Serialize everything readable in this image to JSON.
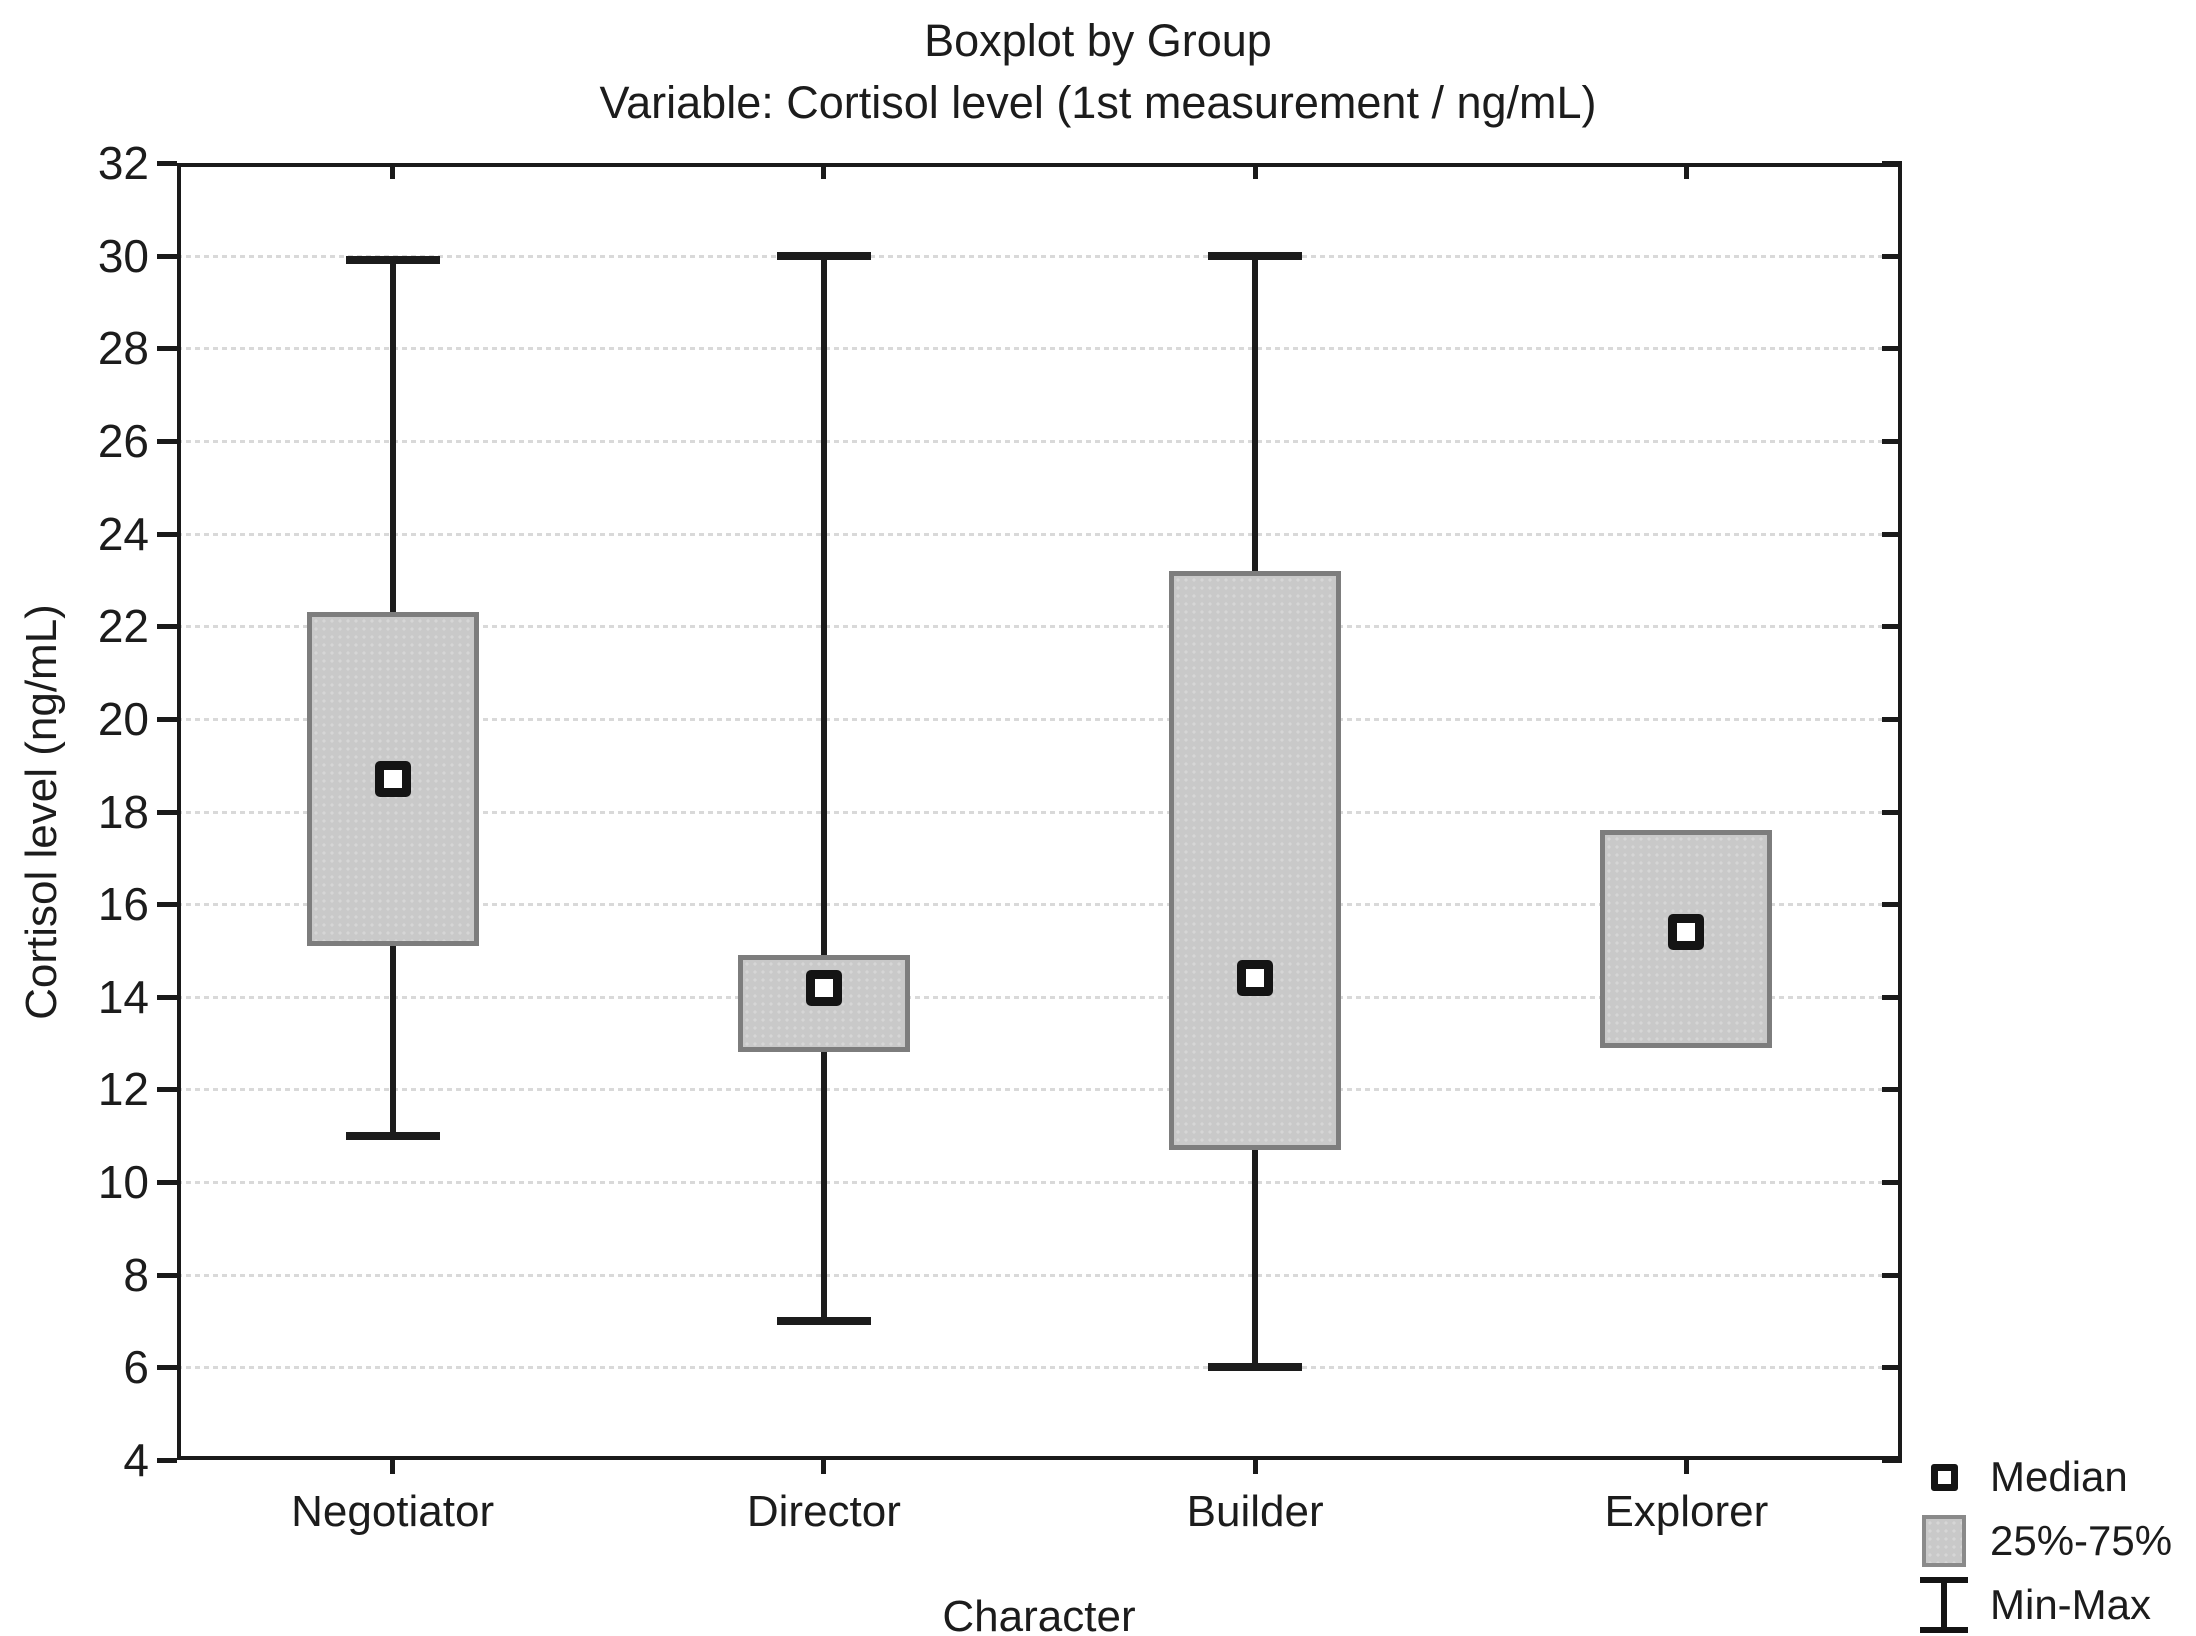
{
  "title": "Boxplot by Group",
  "subtitle": "Variable: Cortisol level (1st measurement / ng/mL)",
  "chart_data": {
    "type": "boxplot",
    "title": "Boxplot by Group",
    "subtitle": "Variable: Cortisol level (1st measurement / ng/mL)",
    "xlabel": "Character",
    "ylabel": "Cortisol level (ng/mL)",
    "categories": [
      "Negotiator",
      "Director",
      "Builder",
      "Explorer"
    ],
    "ylim": [
      4,
      32
    ],
    "ytick_step": 2,
    "yticks": [
      4,
      6,
      8,
      10,
      12,
      14,
      16,
      18,
      20,
      22,
      24,
      26,
      28,
      30,
      32
    ],
    "grid": "horizontal-dotted",
    "legend_position": "bottom-right-outside",
    "series": [
      {
        "name": "Negotiator",
        "min": 11.0,
        "q1": 15.1,
        "median": 18.7,
        "q3": 22.3,
        "max": 29.9
      },
      {
        "name": "Director",
        "min": 7.0,
        "q1": 12.8,
        "median": 14.2,
        "q3": 14.9,
        "max": 30.0
      },
      {
        "name": "Builder",
        "min": 6.0,
        "q1": 10.7,
        "median": 14.4,
        "q3": 23.2,
        "max": 30.0
      },
      {
        "name": "Explorer",
        "min": null,
        "q1": 12.9,
        "median": 15.4,
        "q3": 17.6,
        "max": null
      }
    ],
    "legend": [
      {
        "marker": "median-square",
        "label": "Median"
      },
      {
        "marker": "iqr-box",
        "label": "25%-75%"
      },
      {
        "marker": "min-max-whisker",
        "label": "Min-Max"
      }
    ],
    "colors": {
      "box_fill": "#c9c9c9",
      "box_border": "#7d7d7d",
      "whisker": "#1c1c1c",
      "frame": "#1a1a1a",
      "gridline": "#d9d9d9",
      "median_fill": "#ffffff",
      "median_border": "#141414",
      "background": "#ffffff"
    }
  }
}
